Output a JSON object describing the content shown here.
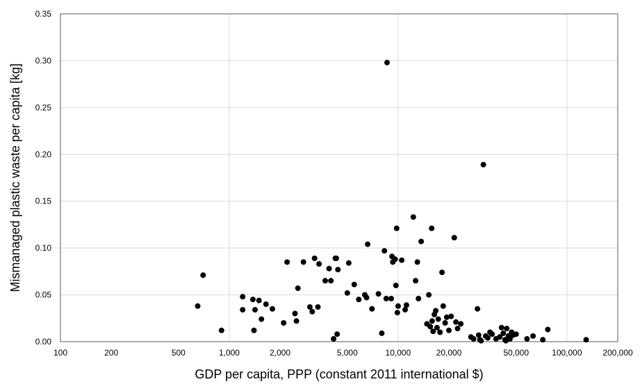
{
  "chart_data": {
    "type": "scatter",
    "title": "",
    "xlabel": "GDP per capita, PPP (constant 2011 international $)",
    "ylabel": "Mismanaged plastic waste per capita [kg]",
    "xscale": "log",
    "xlim": [
      100,
      200000
    ],
    "ylim": [
      0,
      0.35
    ],
    "grid": true,
    "legend": "none",
    "marker_color": "#000000",
    "grid_color": "#d9d9d9",
    "x_ticks": [
      100,
      200,
      500,
      1000,
      2000,
      5000,
      10000,
      20000,
      50000,
      100000,
      200000
    ],
    "x_tick_labels": [
      "100",
      "200",
      "500",
      "1,000",
      "2,000",
      "5,000",
      "10,000",
      "20,000",
      "50,000",
      "100,000",
      "200,000"
    ],
    "y_ticks": [
      0,
      0.05,
      0.1,
      0.15,
      0.2,
      0.25,
      0.3,
      0.35
    ],
    "y_tick_labels": [
      "0.00",
      "0.05",
      "0.10",
      "0.15",
      "0.20",
      "0.25",
      "0.30",
      "0.35"
    ],
    "x_grid": [
      1000,
      10000,
      100000
    ],
    "series": [
      {
        "points": [
          [
            650,
            0.038
          ],
          [
            700,
            0.071
          ],
          [
            900,
            0.012
          ],
          [
            1200,
            0.048
          ],
          [
            1200,
            0.034
          ],
          [
            1380,
            0.045
          ],
          [
            1400,
            0.012
          ],
          [
            1420,
            0.034
          ],
          [
            1500,
            0.044
          ],
          [
            1550,
            0.024
          ],
          [
            1650,
            0.04
          ],
          [
            1800,
            0.035
          ],
          [
            2100,
            0.02
          ],
          [
            2200,
            0.085
          ],
          [
            2450,
            0.03
          ],
          [
            2500,
            0.022
          ],
          [
            2550,
            0.057
          ],
          [
            2750,
            0.085
          ],
          [
            3000,
            0.037
          ],
          [
            3100,
            0.032
          ],
          [
            3200,
            0.089
          ],
          [
            3350,
            0.037
          ],
          [
            3400,
            0.083
          ],
          [
            3700,
            0.065
          ],
          [
            3900,
            0.078
          ],
          [
            4000,
            0.065
          ],
          [
            4150,
            0.003
          ],
          [
            4250,
            0.089
          ],
          [
            4300,
            0.089
          ],
          [
            4350,
            0.008
          ],
          [
            4400,
            0.077
          ],
          [
            5000,
            0.052
          ],
          [
            5100,
            0.084
          ],
          [
            5500,
            0.061
          ],
          [
            5850,
            0.045
          ],
          [
            6350,
            0.05
          ],
          [
            6500,
            0.047
          ],
          [
            6600,
            0.104
          ],
          [
            7000,
            0.035
          ],
          [
            7650,
            0.051
          ],
          [
            8000,
            0.009
          ],
          [
            8300,
            0.097
          ],
          [
            8500,
            0.046
          ],
          [
            8600,
            0.298
          ],
          [
            9100,
            0.046
          ],
          [
            9200,
            0.091
          ],
          [
            9300,
            0.085
          ],
          [
            9600,
            0.088
          ],
          [
            9700,
            0.06
          ],
          [
            9800,
            0.121
          ],
          [
            9900,
            0.031
          ],
          [
            10000,
            0.038
          ],
          [
            10500,
            0.087
          ],
          [
            11000,
            0.034
          ],
          [
            11200,
            0.039
          ],
          [
            12300,
            0.133
          ],
          [
            12700,
            0.065
          ],
          [
            13000,
            0.085
          ],
          [
            13200,
            0.046
          ],
          [
            13700,
            0.107
          ],
          [
            14800,
            0.019
          ],
          [
            15200,
            0.05
          ],
          [
            15500,
            0.016
          ],
          [
            15800,
            0.121
          ],
          [
            15900,
            0.022
          ],
          [
            16100,
            0.011
          ],
          [
            16400,
            0.029
          ],
          [
            16700,
            0.033
          ],
          [
            17000,
            0.015
          ],
          [
            17300,
            0.024
          ],
          [
            17700,
            0.01
          ],
          [
            18200,
            0.074
          ],
          [
            18500,
            0.038
          ],
          [
            19000,
            0.02
          ],
          [
            19400,
            0.026
          ],
          [
            20000,
            0.012
          ],
          [
            20600,
            0.027
          ],
          [
            21500,
            0.111
          ],
          [
            22000,
            0.021
          ],
          [
            22500,
            0.014
          ],
          [
            23500,
            0.019
          ],
          [
            27000,
            0.005
          ],
          [
            28000,
            0.003
          ],
          [
            29500,
            0.035
          ],
          [
            30000,
            0.007
          ],
          [
            30500,
            0.002
          ],
          [
            31000,
            0.001
          ],
          [
            32000,
            0.189
          ],
          [
            33000,
            0.006
          ],
          [
            34000,
            0.004
          ],
          [
            35000,
            0.01
          ],
          [
            36000,
            0.008
          ],
          [
            38000,
            0.003
          ],
          [
            40000,
            0.005
          ],
          [
            41000,
            0.015
          ],
          [
            42000,
            0.009
          ],
          [
            43000,
            0.002
          ],
          [
            43500,
            0.001
          ],
          [
            44000,
            0.014
          ],
          [
            45000,
            0.006
          ],
          [
            46000,
            0.003
          ],
          [
            47000,
            0.01
          ],
          [
            48000,
            0.007
          ],
          [
            50000,
            0.008
          ],
          [
            58000,
            0.003
          ],
          [
            63000,
            0.006
          ],
          [
            72000,
            0.002
          ],
          [
            77000,
            0.013
          ],
          [
            130000,
            0.002
          ]
        ]
      }
    ]
  }
}
